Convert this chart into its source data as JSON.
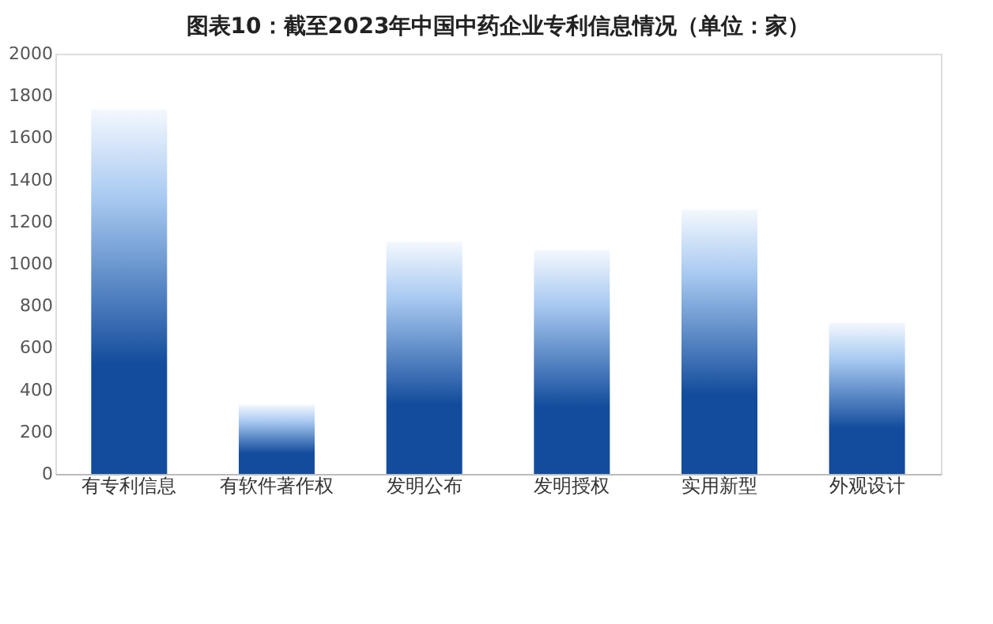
{
  "chart_data": {
    "type": "bar",
    "title": "图表10：截至2023年中国中药企业专利信息情况（单位：家）",
    "categories": [
      "有专利信息",
      "有软件著作权",
      "发明公布",
      "发明授权",
      "实用新型",
      "外观设计"
    ],
    "values": [
      1735,
      330,
      1105,
      1065,
      1258,
      720
    ],
    "color": "#134c9c",
    "ylim": [
      0,
      2000
    ],
    "yticks": [
      0,
      200,
      400,
      600,
      800,
      1000,
      1200,
      1400,
      1600,
      1800,
      2000
    ],
    "grid": false
  }
}
